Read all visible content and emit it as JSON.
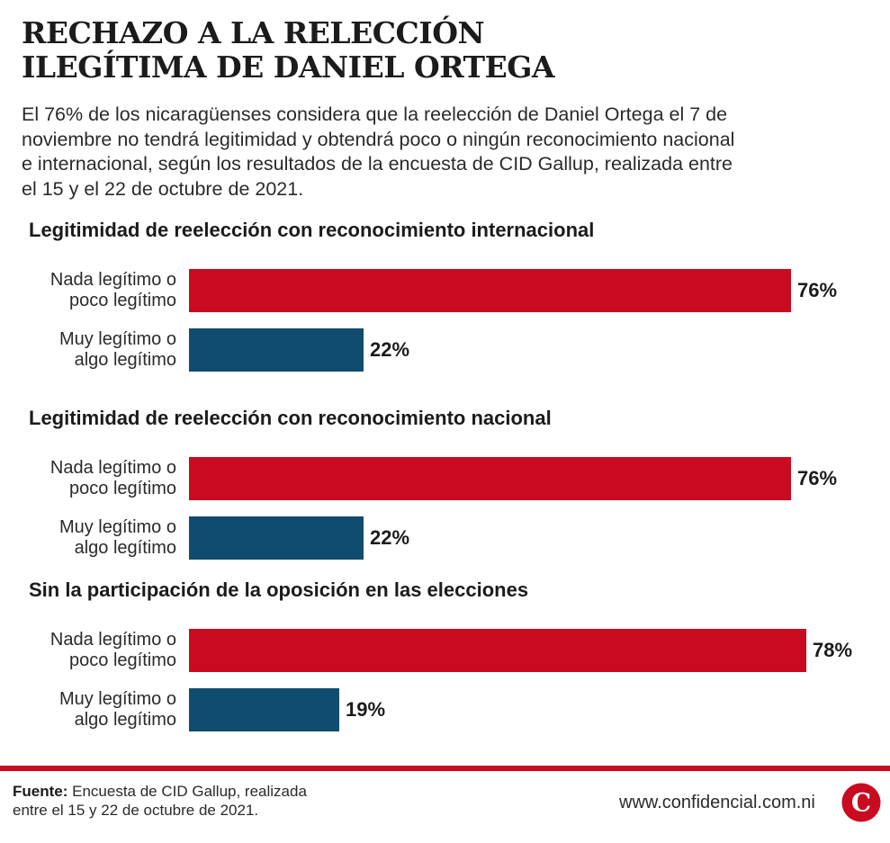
{
  "header": {
    "title_line1": "RECHAZO A LA RELECCIÓN",
    "title_line2": "ILEGÍTIMA DE DANIEL ORTEGA",
    "intro_lines": [
      "El 76% de los nicaragüenses considera que la reelección de Daniel Ortega el 7 de",
      "noviembre no tendrá legitimidad y obtendrá poco o ningún reconocimiento nacional",
      "e internacional, según los resultados de la encuesta de CID Gallup, realizada entre",
      "el 15 y el 22 de octubre de 2021."
    ]
  },
  "chart_data": [
    {
      "type": "bar",
      "orientation": "horizontal",
      "title": "Legitimidad de reelección con reconocimiento internacional",
      "categories": [
        [
          "Nada legítimo o",
          "poco legítimo"
        ],
        [
          "Muy legítimo o",
          "algo legítimo"
        ]
      ],
      "values": [
        76,
        22
      ],
      "value_labels": [
        "76%",
        "22%"
      ],
      "colors": [
        "#c90a20",
        "#0f4c6e"
      ],
      "xlim": [
        0,
        100
      ],
      "grid": false
    },
    {
      "type": "bar",
      "orientation": "horizontal",
      "title": "Legitimidad de reelección con reconocimiento nacional",
      "categories": [
        [
          "Nada legítimo o",
          "poco legítimo"
        ],
        [
          "Muy legítimo o",
          "algo legítimo"
        ]
      ],
      "values": [
        76,
        22
      ],
      "value_labels": [
        "76%",
        "22%"
      ],
      "colors": [
        "#c90a20",
        "#0f4c6e"
      ],
      "xlim": [
        0,
        100
      ],
      "grid": false
    },
    {
      "type": "bar",
      "orientation": "horizontal",
      "title": "Sin la participación de la oposición en las elecciones",
      "categories": [
        [
          "Nada legítimo o",
          "poco legítimo"
        ],
        [
          "Muy legítimo o",
          "algo legítimo"
        ]
      ],
      "values": [
        78,
        19
      ],
      "value_labels": [
        "78%",
        "19%"
      ],
      "colors": [
        "#c90a20",
        "#0f4c6e"
      ],
      "xlim": [
        0,
        100
      ],
      "grid": false
    }
  ],
  "footer": {
    "source_label": "Fuente:",
    "source_text_line1": " Encuesta de CID Gallup, realizada",
    "source_text_line2": "entre el 15 y 22 de octubre de 2021.",
    "website": "www.confidencial.com.ni",
    "logo_letter": "C",
    "accent_color": "#c90a20"
  }
}
